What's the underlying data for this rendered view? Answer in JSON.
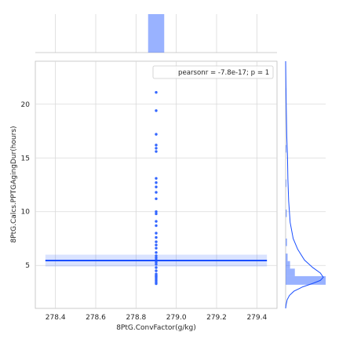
{
  "chart_data": {
    "type": "scatter",
    "xlabel": "8PtG.ConvFactor(g/kg)",
    "ylabel": "8PtG.Calcs.PPTGAgingDur(hours)",
    "xlim": [
      278.3,
      279.5
    ],
    "ylim": [
      1,
      24
    ],
    "xticks": [
      278.4,
      278.6,
      278.8,
      279.0,
      279.2,
      279.4
    ],
    "xtick_labels": [
      "278.4",
      "278.6",
      "278.8",
      "279.0",
      "279.2",
      "279.4"
    ],
    "yticks": [
      5,
      10,
      15,
      20
    ],
    "ytick_labels": [
      "5",
      "10",
      "15",
      "20"
    ],
    "grid": true,
    "legend": {
      "text": "pearsonr = -7.8e-17; p = 1",
      "placement": "top-right"
    },
    "color": "#3366ff",
    "series": [
      {
        "x": [
          278.9,
          278.9,
          278.9,
          278.9,
          278.9,
          278.9,
          278.9,
          278.9,
          278.9,
          278.9,
          278.9,
          278.9,
          278.9,
          278.9,
          278.9,
          278.9,
          278.9,
          278.9,
          278.9,
          278.9,
          278.9,
          278.9,
          278.9,
          278.9,
          278.9,
          278.9,
          278.9,
          278.9,
          278.9,
          278.9,
          278.9,
          278.9,
          278.9,
          278.9,
          278.9,
          278.9
        ],
        "y": [
          3.3,
          3.45,
          3.6,
          3.75,
          3.9,
          4.05,
          4.2,
          4.5,
          4.8,
          5.1,
          5.3,
          5.5,
          5.7,
          5.9,
          6.2,
          6.6,
          6.9,
          7.2,
          7.6,
          8.0,
          8.7,
          9.1,
          9.8,
          10.0,
          11.2,
          11.8,
          12.3,
          12.7,
          13.1,
          15.6,
          15.9,
          16.2,
          17.2,
          19.4,
          21.1,
          4.0
        ]
      }
    ],
    "regression": {
      "x": [
        278.35,
        279.45
      ],
      "y": [
        5.45,
        5.45
      ],
      "ci": [
        4.9,
        6.0
      ]
    },
    "top_marginal": {
      "bin_center": 278.9,
      "bin_width": 0.08,
      "relative_height": 1.0
    },
    "right_marginal": {
      "bins": [
        {
          "lo": 3.2,
          "hi": 4.0,
          "rel": 1.0
        },
        {
          "lo": 4.0,
          "hi": 4.7,
          "rel": 0.23
        },
        {
          "lo": 4.7,
          "hi": 5.4,
          "rel": 0.11
        },
        {
          "lo": 5.4,
          "hi": 6.1,
          "rel": 0.05
        },
        {
          "lo": 6.8,
          "hi": 7.5,
          "rel": 0.035
        },
        {
          "lo": 9.5,
          "hi": 10.2,
          "rel": 0.03
        },
        {
          "lo": 12.3,
          "hi": 13.0,
          "rel": 0.02
        },
        {
          "lo": 15.5,
          "hi": 16.2,
          "rel": 0.02
        },
        {
          "lo": 20.8,
          "hi": 21.5,
          "rel": 0.02
        }
      ],
      "kde": [
        [
          24,
          0.0
        ],
        [
          21,
          0.01
        ],
        [
          19,
          0.02
        ],
        [
          17,
          0.03
        ],
        [
          15,
          0.05
        ],
        [
          13,
          0.06
        ],
        [
          11,
          0.08
        ],
        [
          9,
          0.12
        ],
        [
          7.5,
          0.2
        ],
        [
          6.5,
          0.32
        ],
        [
          5.5,
          0.5
        ],
        [
          4.8,
          0.72
        ],
        [
          4.3,
          0.92
        ],
        [
          3.9,
          1.0
        ],
        [
          3.6,
          0.92
        ],
        [
          3.3,
          0.7
        ],
        [
          3.0,
          0.45
        ],
        [
          2.6,
          0.22
        ],
        [
          2.2,
          0.1
        ],
        [
          1.8,
          0.04
        ],
        [
          1.3,
          0.01
        ],
        [
          1.0,
          0.0
        ]
      ]
    }
  }
}
